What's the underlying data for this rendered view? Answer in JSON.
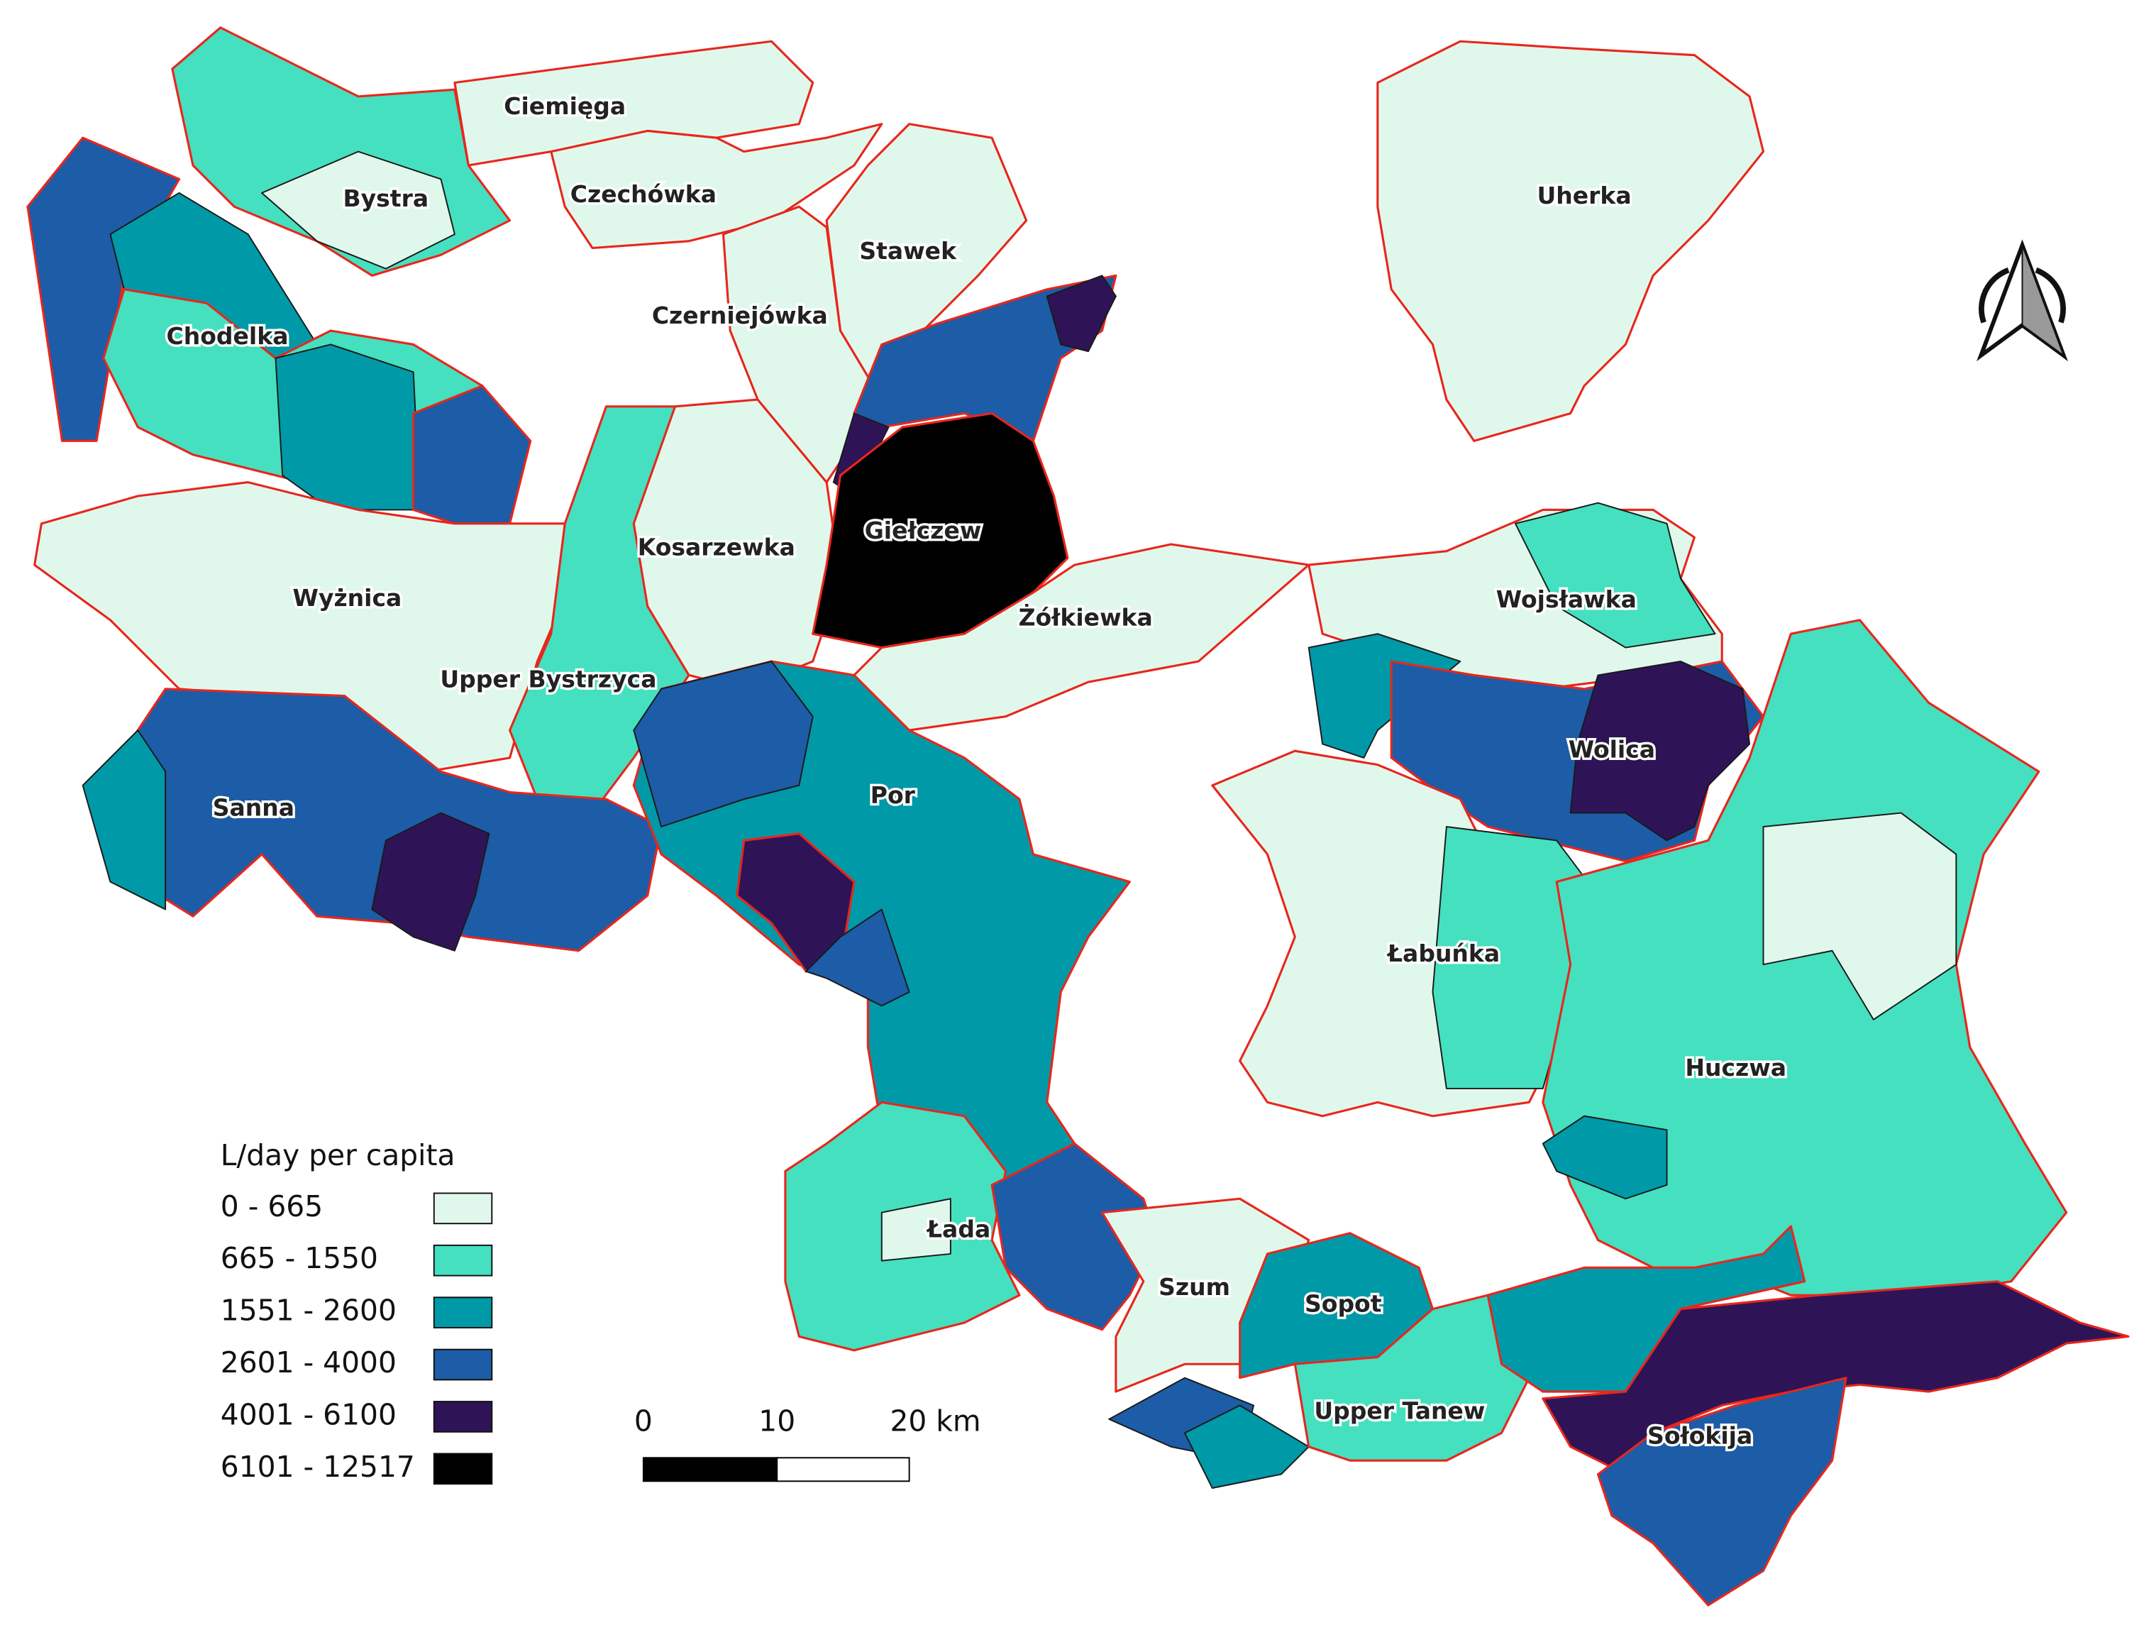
{
  "map": {
    "regions": [
      {
        "label": "Ciemięga"
      },
      {
        "label": "Bystra"
      },
      {
        "label": "Czechówka"
      },
      {
        "label": "Stawek"
      },
      {
        "label": "Czerniejówka"
      },
      {
        "label": "Chodelka"
      },
      {
        "label": "Uherka"
      },
      {
        "label": "Giełczew"
      },
      {
        "label": "Kosarzewka"
      },
      {
        "label": "Wyżnica"
      },
      {
        "label": "Wojsławka"
      },
      {
        "label": "Żółkiewka"
      },
      {
        "label": "Upper Bystrzyca"
      },
      {
        "label": "Wolica"
      },
      {
        "label": "Sanna"
      },
      {
        "label": "Por"
      },
      {
        "label": "Łabuńka"
      },
      {
        "label": "Huczwa"
      },
      {
        "label": "Łada"
      },
      {
        "label": "Szum"
      },
      {
        "label": "Sopot"
      },
      {
        "label": "Upper Tanew"
      },
      {
        "label": "Sołokija"
      }
    ],
    "legend": {
      "title": "L/day per capita",
      "items": [
        {
          "label": "0 - 665",
          "color": "#e0f8ec"
        },
        {
          "label": "665 - 1550",
          "color": "#45e0bf"
        },
        {
          "label": "1551 - 2600",
          "color": "#0099a8"
        },
        {
          "label": "2601 - 4000",
          "color": "#1d5ca6"
        },
        {
          "label": "4001 - 6100",
          "color": "#2e1457"
        },
        {
          "label": "6101 - 12517",
          "color": "#000000"
        }
      ]
    },
    "scale_bar": {
      "labels": [
        "0",
        "10",
        "20 km"
      ]
    }
  }
}
